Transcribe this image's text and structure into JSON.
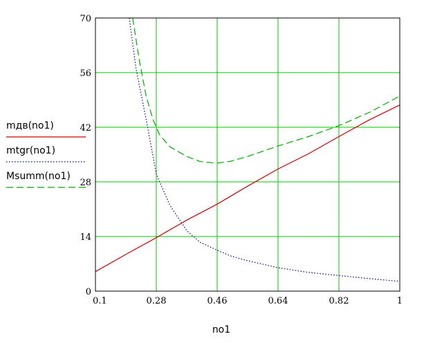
{
  "chart_data": {
    "type": "line",
    "xlabel": "no1",
    "xlim": [
      0.1,
      1.0
    ],
    "ylim": [
      0,
      70
    ],
    "xticks": [
      "0.1",
      "0.28",
      "0.46",
      "0.64",
      "0.82",
      "1"
    ],
    "yticks": [
      "0",
      "14",
      "28",
      "42",
      "56",
      "70"
    ],
    "grid": true,
    "legend_position": "left",
    "series": [
      {
        "name": "mдв(no1)",
        "style": "solid",
        "color": "#cc0000",
        "x": [
          0.1,
          0.2,
          0.28,
          0.37,
          0.46,
          0.55,
          0.64,
          0.73,
          0.82,
          0.91,
          1.0
        ],
        "y": [
          5.0,
          9.9,
          13.7,
          18.2,
          22.3,
          26.9,
          31.3,
          35.2,
          39.6,
          43.9,
          47.7
        ]
      },
      {
        "name": "mtgr(no1)",
        "style": "dotted",
        "color": "#00008b",
        "x": [
          0.2,
          0.22,
          0.25,
          0.28,
          0.32,
          0.37,
          0.41,
          0.46,
          0.5,
          0.55,
          0.64,
          0.73,
          0.82,
          0.91,
          1.0
        ],
        "y": [
          70,
          57,
          44,
          30,
          22,
          15.5,
          12.5,
          10.5,
          9.0,
          7.8,
          6.0,
          4.8,
          4.0,
          3.2,
          2.5
        ]
      },
      {
        "name": "Msumm(no1)",
        "style": "dashed",
        "color": "#00aa00",
        "x": [
          0.21,
          0.23,
          0.25,
          0.27,
          0.29,
          0.32,
          0.37,
          0.41,
          0.46,
          0.5,
          0.55,
          0.64,
          0.73,
          0.82,
          0.91,
          1.0
        ],
        "y": [
          70,
          59,
          50,
          44,
          40,
          37,
          34.5,
          33.2,
          32.8,
          33.3,
          34.5,
          37.2,
          39.6,
          42.4,
          45.8,
          50.0
        ]
      }
    ]
  }
}
